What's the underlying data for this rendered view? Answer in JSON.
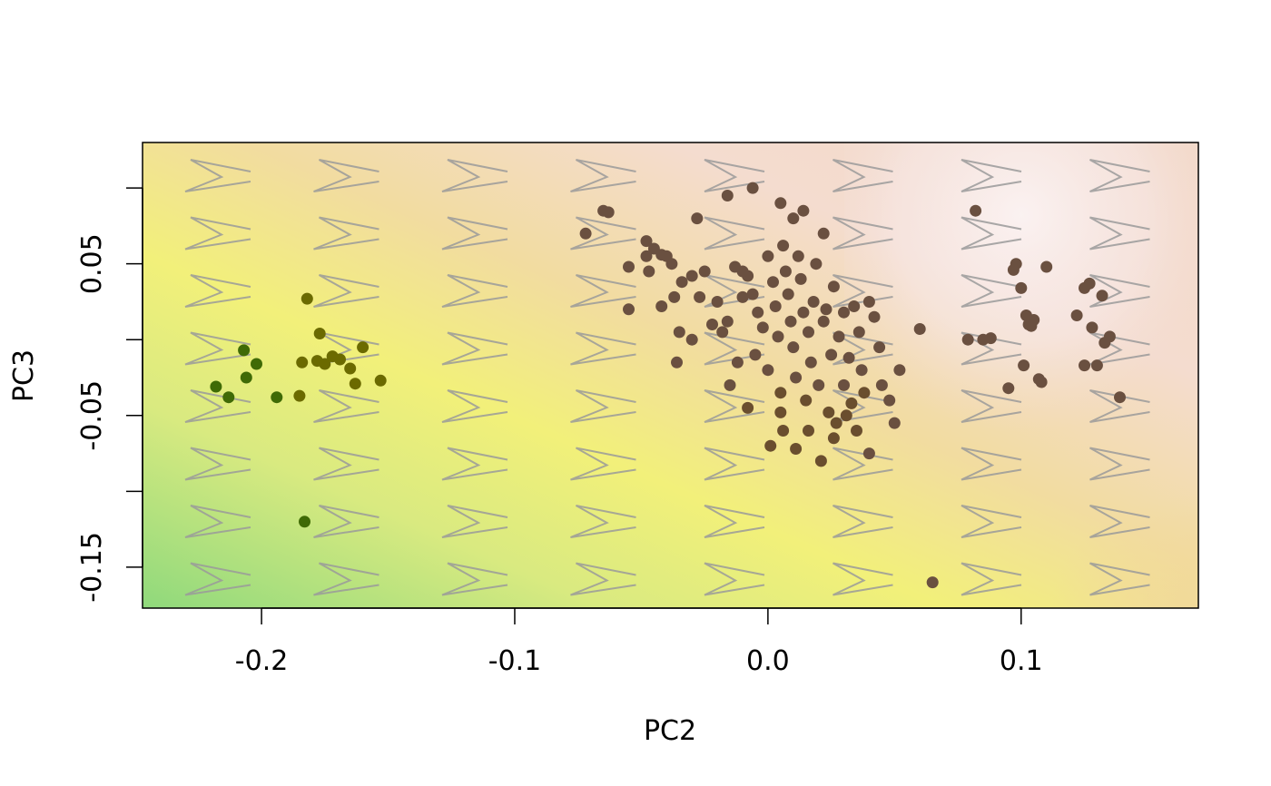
{
  "chart_data": {
    "type": "scatter",
    "title": "",
    "xlabel": "PC2",
    "ylabel": "PC3",
    "xlim": [
      -0.247,
      0.17
    ],
    "ylim": [
      -0.177,
      0.13
    ],
    "x_ticks": [
      -0.2,
      -0.1,
      0.0,
      0.1
    ],
    "x_tick_labels": [
      "-0.2",
      "-0.1",
      "0.0",
      "0.1"
    ],
    "y_ticks": [
      -0.15,
      -0.1,
      -0.05,
      0.0,
      0.05,
      0.1
    ],
    "y_tick_labels": [
      "-0.15",
      "",
      "-0.05",
      "",
      "0.05",
      ""
    ],
    "grid": false,
    "legend": "none",
    "background": "filled contour surface (green–yellow–tan–pink gradient) with a grid of outline shapes",
    "colors": {
      "green": "#8fd97c",
      "yellow": "#f2f07a",
      "tan": "#f2dca0",
      "pink": "#f4dccf",
      "pale_pink": "#f8eeee",
      "outline_shape": "#9a9a9a",
      "points_dark_green": "#3f6a06",
      "points_olive": "#6b6a00",
      "points_brown": "#6a5040"
    },
    "series": [
      {
        "color": "#5a6a10",
        "points": [
          [
            -0.218,
            -0.031
          ],
          [
            -0.213,
            -0.038
          ],
          [
            -0.206,
            -0.025
          ],
          [
            -0.207,
            -0.007
          ],
          [
            -0.202,
            -0.016
          ],
          [
            -0.194,
            -0.038
          ],
          [
            -0.185,
            -0.037
          ],
          [
            -0.184,
            -0.015
          ],
          [
            -0.182,
            0.027
          ],
          [
            -0.178,
            -0.014
          ],
          [
            -0.177,
            0.004
          ],
          [
            -0.175,
            -0.016
          ],
          [
            -0.172,
            -0.011
          ],
          [
            -0.169,
            -0.013
          ],
          [
            -0.165,
            -0.019
          ],
          [
            -0.163,
            -0.029
          ],
          [
            -0.16,
            -0.005
          ],
          [
            -0.153,
            -0.027
          ],
          [
            -0.183,
            -0.12
          ]
        ]
      },
      {
        "color": "#6a5040",
        "points": [
          [
            -0.072,
            0.07
          ],
          [
            -0.065,
            0.085
          ],
          [
            -0.063,
            0.084
          ],
          [
            -0.055,
            0.048
          ],
          [
            -0.055,
            0.02
          ],
          [
            -0.048,
            0.065
          ],
          [
            -0.047,
            0.045
          ],
          [
            -0.045,
            0.06
          ],
          [
            -0.042,
            0.056
          ],
          [
            -0.042,
            0.022
          ],
          [
            -0.04,
            0.055
          ],
          [
            -0.038,
            0.05
          ],
          [
            -0.037,
            0.028
          ],
          [
            -0.036,
            -0.015
          ],
          [
            -0.035,
            0.005
          ],
          [
            -0.034,
            0.038
          ],
          [
            -0.03,
            0.042
          ],
          [
            -0.028,
            0.08
          ],
          [
            -0.027,
            0.028
          ],
          [
            -0.025,
            0.045
          ],
          [
            -0.022,
            0.01
          ],
          [
            -0.02,
            0.025
          ],
          [
            -0.018,
            0.005
          ],
          [
            -0.016,
            0.012
          ],
          [
            -0.015,
            -0.03
          ],
          [
            -0.013,
            0.048
          ],
          [
            -0.012,
            -0.015
          ],
          [
            -0.01,
            0.028
          ],
          [
            -0.008,
            0.042
          ],
          [
            -0.006,
            0.03
          ],
          [
            -0.005,
            -0.01
          ],
          [
            -0.004,
            0.018
          ],
          [
            -0.002,
            0.008
          ],
          [
            0.0,
            0.055
          ],
          [
            0.0,
            -0.02
          ],
          [
            0.002,
            0.038
          ],
          [
            0.003,
            0.022
          ],
          [
            0.004,
            0.002
          ],
          [
            0.005,
            -0.035
          ],
          [
            0.005,
            -0.048
          ],
          [
            0.006,
            0.062
          ],
          [
            0.007,
            0.045
          ],
          [
            0.008,
            0.03
          ],
          [
            0.009,
            0.012
          ],
          [
            0.01,
            -0.005
          ],
          [
            0.011,
            -0.025
          ],
          [
            0.012,
            0.055
          ],
          [
            0.013,
            0.04
          ],
          [
            0.014,
            0.018
          ],
          [
            0.015,
            -0.04
          ],
          [
            0.016,
            0.005
          ],
          [
            0.017,
            -0.015
          ],
          [
            0.018,
            0.025
          ],
          [
            0.019,
            0.05
          ],
          [
            0.02,
            -0.03
          ],
          [
            0.022,
            0.012
          ],
          [
            0.023,
            0.02
          ],
          [
            0.024,
            -0.048
          ],
          [
            0.025,
            -0.01
          ],
          [
            0.026,
            0.035
          ],
          [
            0.027,
            -0.055
          ],
          [
            0.028,
            0.002
          ],
          [
            0.03,
            -0.03
          ],
          [
            0.03,
            0.018
          ],
          [
            0.032,
            -0.012
          ],
          [
            0.033,
            -0.042
          ],
          [
            0.034,
            0.022
          ],
          [
            0.035,
            -0.06
          ],
          [
            0.036,
            0.005
          ],
          [
            0.037,
            -0.02
          ],
          [
            0.038,
            -0.035
          ],
          [
            0.04,
            0.025
          ],
          [
            0.04,
            -0.075
          ],
          [
            0.042,
            0.015
          ],
          [
            0.044,
            -0.005
          ],
          [
            0.045,
            -0.03
          ],
          [
            0.048,
            -0.04
          ],
          [
            0.05,
            -0.055
          ],
          [
            0.052,
            -0.02
          ],
          [
            -0.01,
            0.045
          ],
          [
            -0.008,
            -0.045
          ],
          [
            0.001,
            -0.07
          ],
          [
            0.006,
            -0.06
          ],
          [
            0.011,
            -0.072
          ],
          [
            0.016,
            -0.06
          ],
          [
            0.021,
            -0.08
          ],
          [
            0.026,
            -0.065
          ],
          [
            0.031,
            -0.05
          ],
          [
            0.01,
            0.08
          ],
          [
            -0.006,
            0.1
          ],
          [
            -0.016,
            0.095
          ],
          [
            0.005,
            0.09
          ],
          [
            0.014,
            0.085
          ],
          [
            0.022,
            0.07
          ],
          [
            -0.048,
            0.055
          ],
          [
            -0.03,
            0.0
          ],
          [
            0.06,
            0.007
          ],
          [
            0.065,
            -0.16
          ],
          [
            0.079,
            0.0
          ],
          [
            0.082,
            0.085
          ],
          [
            0.085,
            0.0
          ],
          [
            0.088,
            0.001
          ],
          [
            0.095,
            -0.032
          ],
          [
            0.097,
            0.046
          ],
          [
            0.098,
            0.05
          ],
          [
            0.1,
            0.034
          ],
          [
            0.101,
            -0.017
          ],
          [
            0.102,
            0.016
          ],
          [
            0.103,
            0.01
          ],
          [
            0.104,
            0.009
          ],
          [
            0.105,
            0.013
          ],
          [
            0.107,
            -0.026
          ],
          [
            0.108,
            -0.028
          ],
          [
            0.11,
            0.048
          ],
          [
            0.122,
            0.016
          ],
          [
            0.125,
            0.034
          ],
          [
            0.127,
            0.037
          ],
          [
            0.128,
            0.008
          ],
          [
            0.13,
            -0.017
          ],
          [
            0.133,
            -0.002
          ],
          [
            0.135,
            0.002
          ],
          [
            0.139,
            -0.038
          ],
          [
            0.125,
            -0.017
          ],
          [
            0.132,
            0.029
          ]
        ]
      }
    ]
  }
}
